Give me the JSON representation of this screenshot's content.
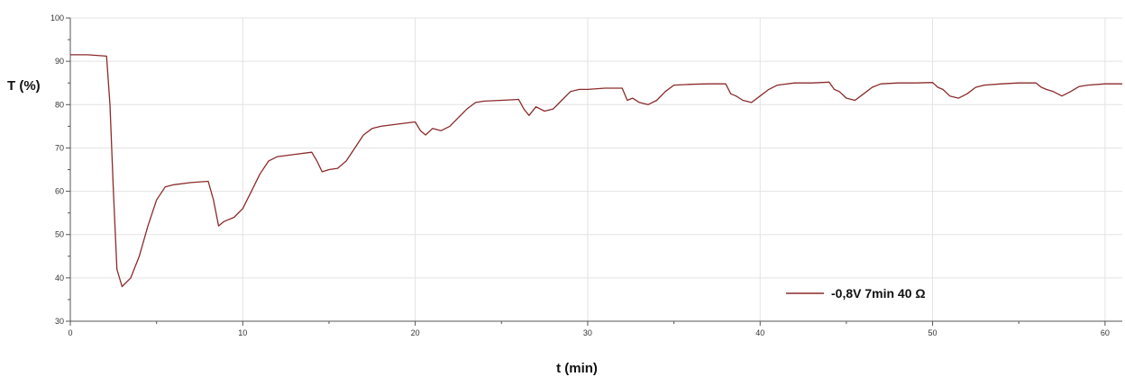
{
  "chart_data": {
    "type": "line",
    "title": "",
    "xlabel": "t (min)",
    "ylabel": "T (%)",
    "xlim": [
      0,
      61
    ],
    "ylim": [
      30,
      100
    ],
    "x_ticks": [
      0,
      10,
      20,
      30,
      40,
      50,
      60
    ],
    "y_ticks": [
      30,
      40,
      50,
      60,
      70,
      80,
      90,
      100
    ],
    "grid": true,
    "legend_position": "bottom-right",
    "series": [
      {
        "name": "-0,8V 7min 40 Ω",
        "color": "#8b2a2a",
        "x": [
          0,
          1,
          2.1,
          2.3,
          2.5,
          2.7,
          3.0,
          3.5,
          4.0,
          4.5,
          5.0,
          5.5,
          6.0,
          7.0,
          8.0,
          8.3,
          8.6,
          8.9,
          9.5,
          10.0,
          10.5,
          11.0,
          11.5,
          12.0,
          13.0,
          14.0,
          14.3,
          14.6,
          15.0,
          15.5,
          16.0,
          16.5,
          17.0,
          17.5,
          18.0,
          19.0,
          20.0,
          20.3,
          20.6,
          21.0,
          21.5,
          22.0,
          22.5,
          23.0,
          23.5,
          24.0,
          25.0,
          26.0,
          26.3,
          26.6,
          27.0,
          27.5,
          28.0,
          28.5,
          29.0,
          29.5,
          30.0,
          31.0,
          32.0,
          32.3,
          32.6,
          33.0,
          33.5,
          34.0,
          34.5,
          35.0,
          36.0,
          37.0,
          38.0,
          38.3,
          38.6,
          39.0,
          39.5,
          40.0,
          40.5,
          41.0,
          42.0,
          43.0,
          44.0,
          44.3,
          44.6,
          45.0,
          45.5,
          46.0,
          46.5,
          47.0,
          48.0,
          49.0,
          50.0,
          50.3,
          50.6,
          51.0,
          51.5,
          52.0,
          52.5,
          53.0,
          54.0,
          55.0,
          56.0,
          56.3,
          56.6,
          57.0,
          57.5,
          58.0,
          58.5,
          59.0,
          60.0,
          61.0
        ],
        "y": [
          91.5,
          91.5,
          91.2,
          80,
          60,
          42,
          38,
          40,
          45,
          52,
          58,
          61,
          61.5,
          62,
          62.3,
          58,
          52,
          53,
          54,
          56,
          60,
          64,
          67,
          68,
          68.5,
          69,
          67,
          64.5,
          65,
          65.3,
          67,
          70,
          73,
          74.5,
          75,
          75.5,
          76,
          74,
          73,
          74.5,
          74,
          75,
          77,
          79,
          80.5,
          80.8,
          81,
          81.2,
          79,
          77.5,
          79.5,
          78.5,
          79,
          81,
          83,
          83.5,
          83.5,
          83.8,
          83.8,
          81,
          81.5,
          80.5,
          80,
          81,
          83,
          84.5,
          84.7,
          84.8,
          84.8,
          82.5,
          82,
          81,
          80.5,
          82,
          83.5,
          84.5,
          85,
          85,
          85.2,
          83.5,
          83,
          81.5,
          81,
          82.5,
          84,
          84.8,
          85,
          85,
          85.1,
          84,
          83.5,
          82,
          81.5,
          82.5,
          84,
          84.5,
          84.8,
          85,
          85,
          84,
          83.5,
          83,
          82,
          83,
          84.2,
          84.5,
          84.8,
          84.8
        ]
      }
    ]
  }
}
